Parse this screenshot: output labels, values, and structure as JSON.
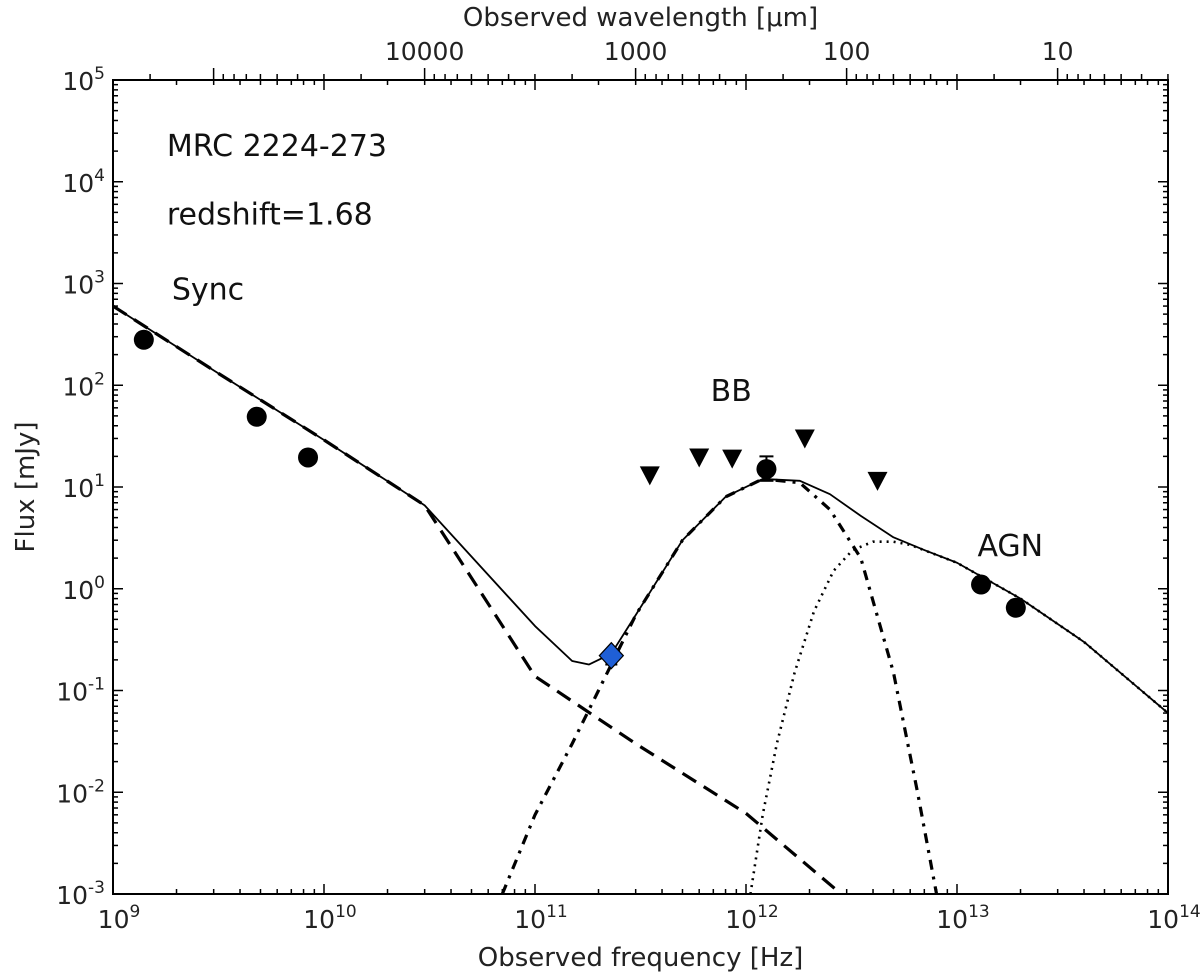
{
  "chart_data": {
    "type": "scatter",
    "title": "",
    "xlabel": "Observed frequency [Hz]",
    "ylabel": "Flux [mJy]",
    "top_xlabel": "Observed wavelength [μm]",
    "xscale": "log",
    "yscale": "log",
    "xlim": [
      1000000000.0,
      100000000000000.0
    ],
    "ylim": [
      0.001,
      100000
    ],
    "x_ticks": [
      {
        "value": 1000000000.0,
        "base": "10",
        "exp": "9"
      },
      {
        "value": 10000000000.0,
        "base": "10",
        "exp": "10"
      },
      {
        "value": 100000000000.0,
        "base": "10",
        "exp": "11"
      },
      {
        "value": 1000000000000.0,
        "base": "10",
        "exp": "12"
      },
      {
        "value": 10000000000000.0,
        "base": "10",
        "exp": "13"
      },
      {
        "value": 100000000000000.0,
        "base": "10",
        "exp": "14"
      }
    ],
    "y_ticks": [
      {
        "value": 0.001,
        "base": "10",
        "exp": "-3"
      },
      {
        "value": 0.01,
        "base": "10",
        "exp": "-2"
      },
      {
        "value": 0.1,
        "base": "10",
        "exp": "-1"
      },
      {
        "value": 1,
        "base": "10",
        "exp": "0"
      },
      {
        "value": 10,
        "base": "10",
        "exp": "1"
      },
      {
        "value": 100,
        "base": "10",
        "exp": "2"
      },
      {
        "value": 1000,
        "base": "10",
        "exp": "3"
      },
      {
        "value": 10000,
        "base": "10",
        "exp": "4"
      },
      {
        "value": 100000,
        "base": "10",
        "exp": "5"
      }
    ],
    "top_ticks": [
      {
        "wavelength_um": 10000,
        "label": "10000"
      },
      {
        "wavelength_um": 1000,
        "label": "1000"
      },
      {
        "wavelength_um": 100,
        "label": "100"
      },
      {
        "wavelength_um": 10,
        "label": "10"
      }
    ],
    "annotations": [
      {
        "text": "MRC 2224-273",
        "x": 1800000000.0,
        "y": 18000
      },
      {
        "text": "redshift=1.68",
        "x": 1800000000.0,
        "y": 3800
      },
      {
        "text": "Sync",
        "x": 1900000000.0,
        "y": 700
      },
      {
        "text": "BB",
        "x": 680000000000.0,
        "y": 70
      },
      {
        "text": "AGN",
        "x": 12500000000000.0,
        "y": 2.1
      }
    ],
    "detections": [
      {
        "x": 1400000000.0,
        "y": 280
      },
      {
        "x": 4800000000.0,
        "y": 49
      },
      {
        "x": 8400000000.0,
        "y": 19.5
      },
      {
        "x": 1250000000000.0,
        "y": 15,
        "yerr": [
          3.5,
          5.0
        ]
      },
      {
        "x": 13000000000000.0,
        "y": 1.1
      },
      {
        "x": 19000000000000.0,
        "y": 0.65
      }
    ],
    "upper_limits": [
      {
        "x": 350000000000.0,
        "y": 13
      },
      {
        "x": 600000000000.0,
        "y": 19.5
      },
      {
        "x": 860000000000.0,
        "y": 19
      },
      {
        "x": 1900000000000.0,
        "y": 30
      },
      {
        "x": 4200000000000.0,
        "y": 11.5
      }
    ],
    "highlight_point": {
      "x": 230000000000.0,
      "y": 0.22,
      "yerr": [
        0.04,
        0.0
      ],
      "color": "#1f5fd6"
    },
    "series": [
      {
        "style": "dashed",
        "x": [
          1000000000.0,
          3000000000.0,
          10000000000.0,
          30000000000.0,
          100000000000.0,
          300000000000.0,
          1000000000000.0,
          3000000000000.0
        ],
        "y": [
          600,
          140,
          29,
          6.6,
          0.138,
          0.03,
          0.0062,
          0.0009
        ]
      },
      {
        "style": "dashdot",
        "x": [
          70000000000.0,
          100000000000.0,
          150000000000.0,
          200000000000.0,
          300000000000.0,
          500000000000.0,
          800000000000.0,
          1200000000000.0,
          1800000000000.0,
          2500000000000.0,
          3500000000000.0,
          5000000000000.0,
          6500000000000.0,
          8000000000000.0
        ],
        "y": [
          0.001,
          0.006,
          0.03,
          0.1,
          0.55,
          3.0,
          8.0,
          12.0,
          11.0,
          6.0,
          2.0,
          0.15,
          0.01,
          0.001
        ]
      },
      {
        "style": "dotted",
        "x": [
          1050000000000.0,
          1200000000000.0,
          1400000000000.0,
          1700000000000.0,
          2100000000000.0,
          2600000000000.0,
          3200000000000.0,
          4000000000000.0,
          5000000000000.0,
          6000000000000.0,
          10000000000000.0,
          20000000000000.0,
          40000000000000.0,
          100000000000000.0
        ],
        "y": [
          0.001,
          0.006,
          0.03,
          0.15,
          0.6,
          1.5,
          2.4,
          2.9,
          2.9,
          2.7,
          1.8,
          0.8,
          0.3,
          0.06
        ]
      },
      {
        "style": "solid",
        "x": [
          1000000000.0,
          3000000000.0,
          10000000000.0,
          30000000000.0,
          100000000000.0,
          150000000000.0,
          180000000000.0,
          230000000000.0,
          300000000000.0,
          500000000000.0,
          800000000000.0,
          1200000000000.0,
          1800000000000.0,
          2500000000000.0,
          3500000000000.0,
          5000000000000.0,
          7000000000000.0,
          10000000000000.0,
          20000000000000.0,
          40000000000000.0,
          100000000000000.0
        ],
        "y": [
          600,
          140,
          29,
          6.6,
          0.43,
          0.195,
          0.18,
          0.23,
          0.55,
          3.0,
          8.0,
          12.0,
          11.5,
          8.5,
          5.2,
          3.2,
          2.4,
          1.8,
          0.8,
          0.3,
          0.06
        ]
      }
    ]
  }
}
